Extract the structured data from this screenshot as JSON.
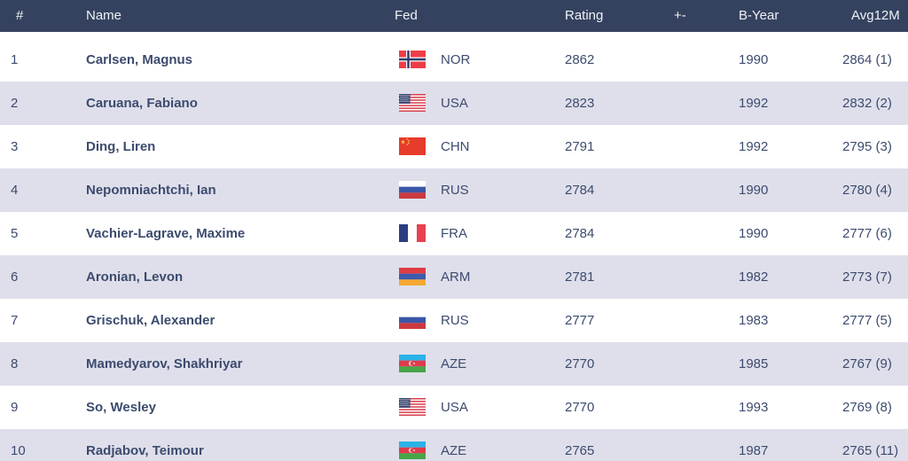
{
  "table": {
    "columns": [
      {
        "key": "rank",
        "label": "#"
      },
      {
        "key": "name",
        "label": "Name"
      },
      {
        "key": "fed",
        "label": "Fed"
      },
      {
        "key": "rating",
        "label": "Rating"
      },
      {
        "key": "change",
        "label": "+-"
      },
      {
        "key": "byear",
        "label": "B-Year"
      },
      {
        "key": "avg12m",
        "label": "Avg12M"
      }
    ],
    "rows": [
      {
        "rank": "1",
        "name": "Carlsen, Magnus",
        "fed": "NOR",
        "rating": "2862",
        "change": "",
        "byear": "1990",
        "avg12m": "2864 (1)"
      },
      {
        "rank": "2",
        "name": "Caruana, Fabiano",
        "fed": "USA",
        "rating": "2823",
        "change": "",
        "byear": "1992",
        "avg12m": "2832 (2)"
      },
      {
        "rank": "3",
        "name": "Ding, Liren",
        "fed": "CHN",
        "rating": "2791",
        "change": "",
        "byear": "1992",
        "avg12m": "2795 (3)"
      },
      {
        "rank": "4",
        "name": "Nepomniachtchi, Ian",
        "fed": "RUS",
        "rating": "2784",
        "change": "",
        "byear": "1990",
        "avg12m": "2780 (4)"
      },
      {
        "rank": "5",
        "name": "Vachier-Lagrave, Maxime",
        "fed": "FRA",
        "rating": "2784",
        "change": "",
        "byear": "1990",
        "avg12m": "2777 (6)"
      },
      {
        "rank": "6",
        "name": "Aronian, Levon",
        "fed": "ARM",
        "rating": "2781",
        "change": "",
        "byear": "1982",
        "avg12m": "2773 (7)"
      },
      {
        "rank": "7",
        "name": "Grischuk, Alexander",
        "fed": "RUS",
        "rating": "2777",
        "change": "",
        "byear": "1983",
        "avg12m": "2777 (5)"
      },
      {
        "rank": "8",
        "name": "Mamedyarov, Shakhriyar",
        "fed": "AZE",
        "rating": "2770",
        "change": "",
        "byear": "1985",
        "avg12m": "2767 (9)"
      },
      {
        "rank": "9",
        "name": "So, Wesley",
        "fed": "USA",
        "rating": "2770",
        "change": "",
        "byear": "1993",
        "avg12m": "2769 (8)"
      },
      {
        "rank": "10",
        "name": "Radjabov, Teimour",
        "fed": "AZE",
        "rating": "2765",
        "change": "",
        "byear": "1987",
        "avg12m": "2765 (11)"
      }
    ]
  },
  "colors": {
    "header_bg": "#35425f",
    "header_text": "#eef1f6",
    "row_plain": "#ffffff",
    "row_stripe": "#dfdfeb",
    "text": "#3c4b6e"
  }
}
